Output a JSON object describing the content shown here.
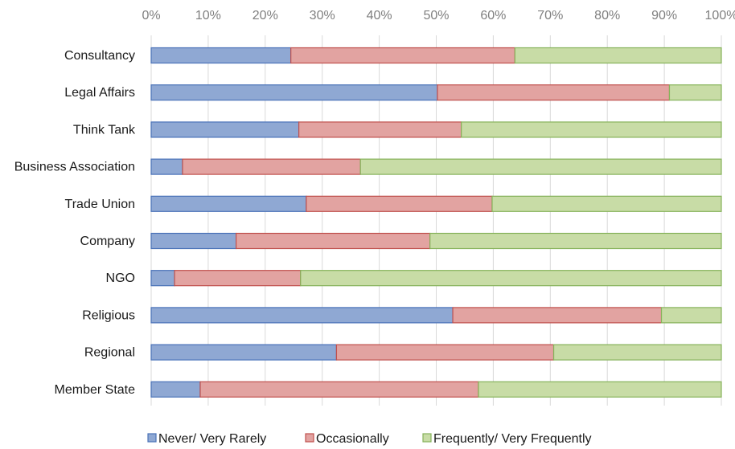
{
  "chart_data": {
    "type": "bar",
    "orientation": "horizontal",
    "stacked": "percent",
    "title": "",
    "xlabel": "",
    "ylabel": "",
    "xlim": [
      0,
      100
    ],
    "x_ticks": [
      "0%",
      "10%",
      "20%",
      "30%",
      "40%",
      "50%",
      "60%",
      "70%",
      "80%",
      "90%",
      "100%"
    ],
    "x_axis_position": "top",
    "grid": true,
    "legend_position": "bottom",
    "categories": [
      "Consultancy",
      "Legal Affairs",
      "Think Tank",
      "Business Association",
      "Trade Union",
      "Company",
      "NGO",
      "Religious",
      "Regional",
      "Member State"
    ],
    "series": [
      {
        "name": "Never/ Very Rarely",
        "color": "#8fa8d3",
        "stroke": "#4a72b8",
        "values": [
          24.5,
          50.2,
          25.9,
          5.5,
          27.2,
          14.9,
          4.1,
          52.9,
          32.5,
          8.6
        ]
      },
      {
        "name": "Occasionally",
        "color": "#e2a3a1",
        "stroke": "#c0504d",
        "values": [
          39.3,
          40.7,
          28.5,
          31.2,
          32.6,
          34.0,
          22.1,
          36.6,
          38.1,
          48.8
        ]
      },
      {
        "name": "Frequently/ Very Frequently",
        "color": "#c8dca6",
        "stroke": "#86b25a",
        "values": [
          36.2,
          9.1,
          45.6,
          63.3,
          40.2,
          51.1,
          73.8,
          10.5,
          29.4,
          42.6
        ]
      }
    ]
  }
}
